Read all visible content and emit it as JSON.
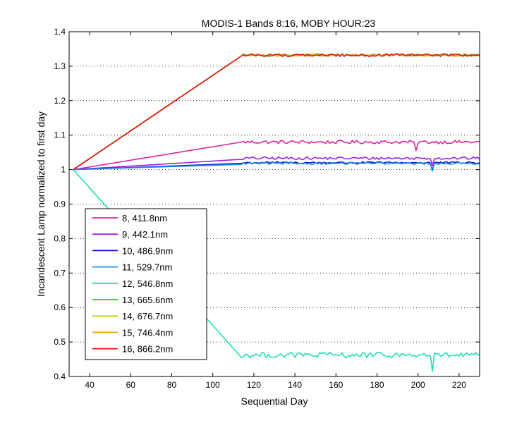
{
  "chart_data": {
    "type": "line",
    "title": "MODIS-1 Bands 8:16, MOBY HOUR:23",
    "xlabel": "Sequential Day",
    "ylabel": "Incandescent Lamp normalized to first day",
    "xlim": [
      30,
      230
    ],
    "ylim": [
      0.4,
      1.4
    ],
    "xticks": [
      40,
      60,
      80,
      100,
      120,
      140,
      160,
      180,
      200,
      220
    ],
    "yticks": [
      0.4,
      0.5,
      0.6,
      0.7,
      0.8,
      0.9,
      1,
      1.1,
      1.2,
      1.3,
      1.4
    ],
    "ytick_labels": [
      "0.4",
      "0.5",
      "0.6",
      "0.7",
      "0.8",
      "0.9",
      "1",
      "1.1",
      "1.2",
      "1.3",
      "1.4"
    ],
    "grid": "y-dotted",
    "legend_position": "bottom-left",
    "series": [
      {
        "name": "8, 411.8nm",
        "color": "#e020a0",
        "start": [
          32,
          1.0
        ],
        "ramp_end": [
          114,
          1.08
        ],
        "plateau_level": 1.08,
        "noise": 0.005,
        "dips": [
          [
            199,
            1.055
          ]
        ]
      },
      {
        "name": "9, 442.1nm",
        "color": "#a020e0",
        "start": [
          32,
          1.0
        ],
        "ramp_end": [
          114,
          1.03
        ],
        "plateau_level": 1.033,
        "noise": 0.004,
        "dips": [
          [
            207,
            1.012
          ]
        ]
      },
      {
        "name": "10, 486.9nm",
        "color": "#1010c8",
        "start": [
          32,
          1.0
        ],
        "ramp_end": [
          114,
          1.018
        ],
        "plateau_level": 1.02,
        "noise": 0.003,
        "dips": [
          [
            207,
            0.998
          ]
        ]
      },
      {
        "name": "11, 529.7nm",
        "color": "#1890e8",
        "start": [
          32,
          1.0
        ],
        "ramp_end": [
          114,
          1.015
        ],
        "plateau_level": 1.018,
        "noise": 0.003,
        "dips": [
          [
            207,
            0.996
          ]
        ]
      },
      {
        "name": "12, 546.8nm",
        "color": "#20e0b0",
        "start": [
          32,
          1.0
        ],
        "ramp_end": [
          114,
          0.455
        ],
        "plateau_level": 0.462,
        "noise": 0.008,
        "dips": [
          [
            207,
            0.415
          ]
        ]
      },
      {
        "name": "13, 665.6nm",
        "color": "#18d018",
        "start": [
          32,
          1.0
        ],
        "ramp_end": [
          114,
          1.33
        ],
        "plateau_level": 1.332,
        "noise": 0.003,
        "dips": []
      },
      {
        "name": "14, 676.7nm",
        "color": "#b8e010",
        "start": [
          32,
          1.0
        ],
        "ramp_end": [
          114,
          1.33
        ],
        "plateau_level": 1.332,
        "noise": 0.003,
        "dips": []
      },
      {
        "name": "15, 746.4nm",
        "color": "#f0a010",
        "start": [
          32,
          1.0
        ],
        "ramp_end": [
          114,
          1.33
        ],
        "plateau_level": 1.332,
        "noise": 0.003,
        "dips": []
      },
      {
        "name": "16, 866.2nm",
        "color": "#e01010",
        "start": [
          32,
          1.0
        ],
        "ramp_end": [
          114,
          1.33
        ],
        "plateau_level": 1.332,
        "noise": 0.004,
        "dips": []
      }
    ]
  }
}
